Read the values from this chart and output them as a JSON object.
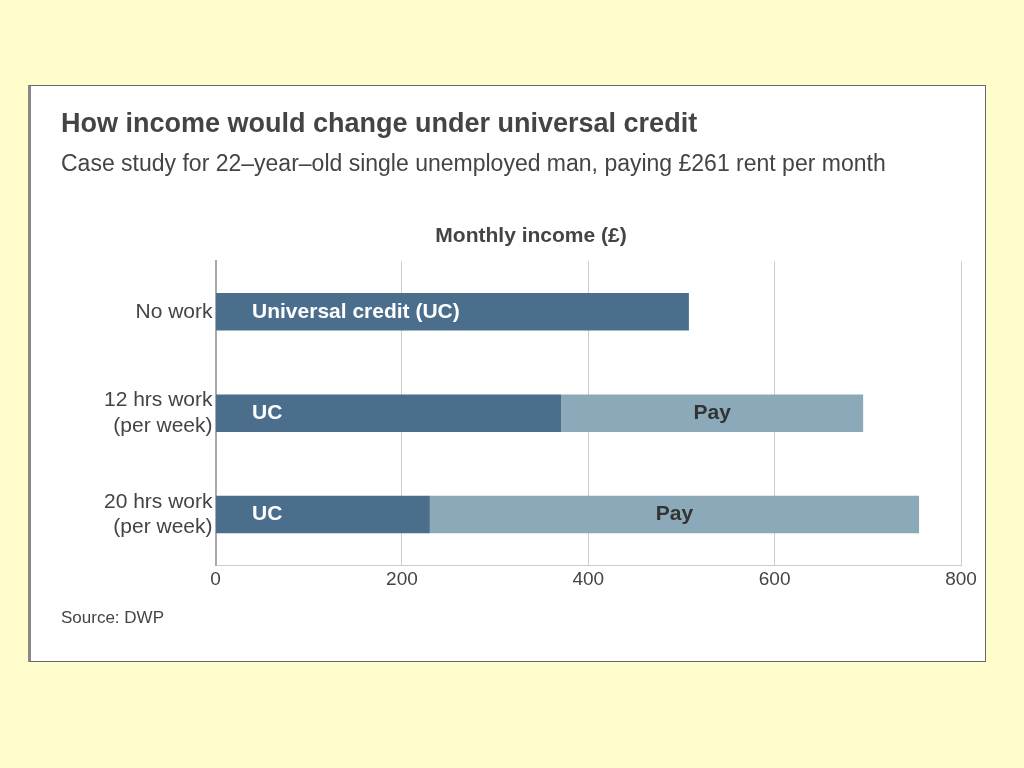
{
  "chart_data": {
    "type": "bar",
    "orientation": "horizontal",
    "stacked": true,
    "title": "How income would change under universal credit",
    "subtitle": "Case study for 22–year–old single unemployed man, paying £261 rent per month",
    "xlabel": "Monthly income (£)",
    "categories": [
      "No work",
      "12 hrs work\n(per week)",
      "20 hrs work\n(per week)"
    ],
    "series": [
      {
        "color": "#4a6e8c",
        "values": [
          508,
          371,
          230
        ],
        "value_labels": [
          "Universal credit (UC)",
          "UC",
          "UC"
        ]
      },
      {
        "color": "#8ba9b8",
        "values": [
          null,
          324,
          525
        ],
        "value_labels": [
          null,
          "Pay",
          "Pay"
        ]
      }
    ],
    "xlim": [
      0,
      800
    ],
    "xticks": [
      0,
      200,
      400,
      600,
      800
    ],
    "grid": "x",
    "legend": false,
    "annotations": [
      "Source: DWP"
    ]
  }
}
